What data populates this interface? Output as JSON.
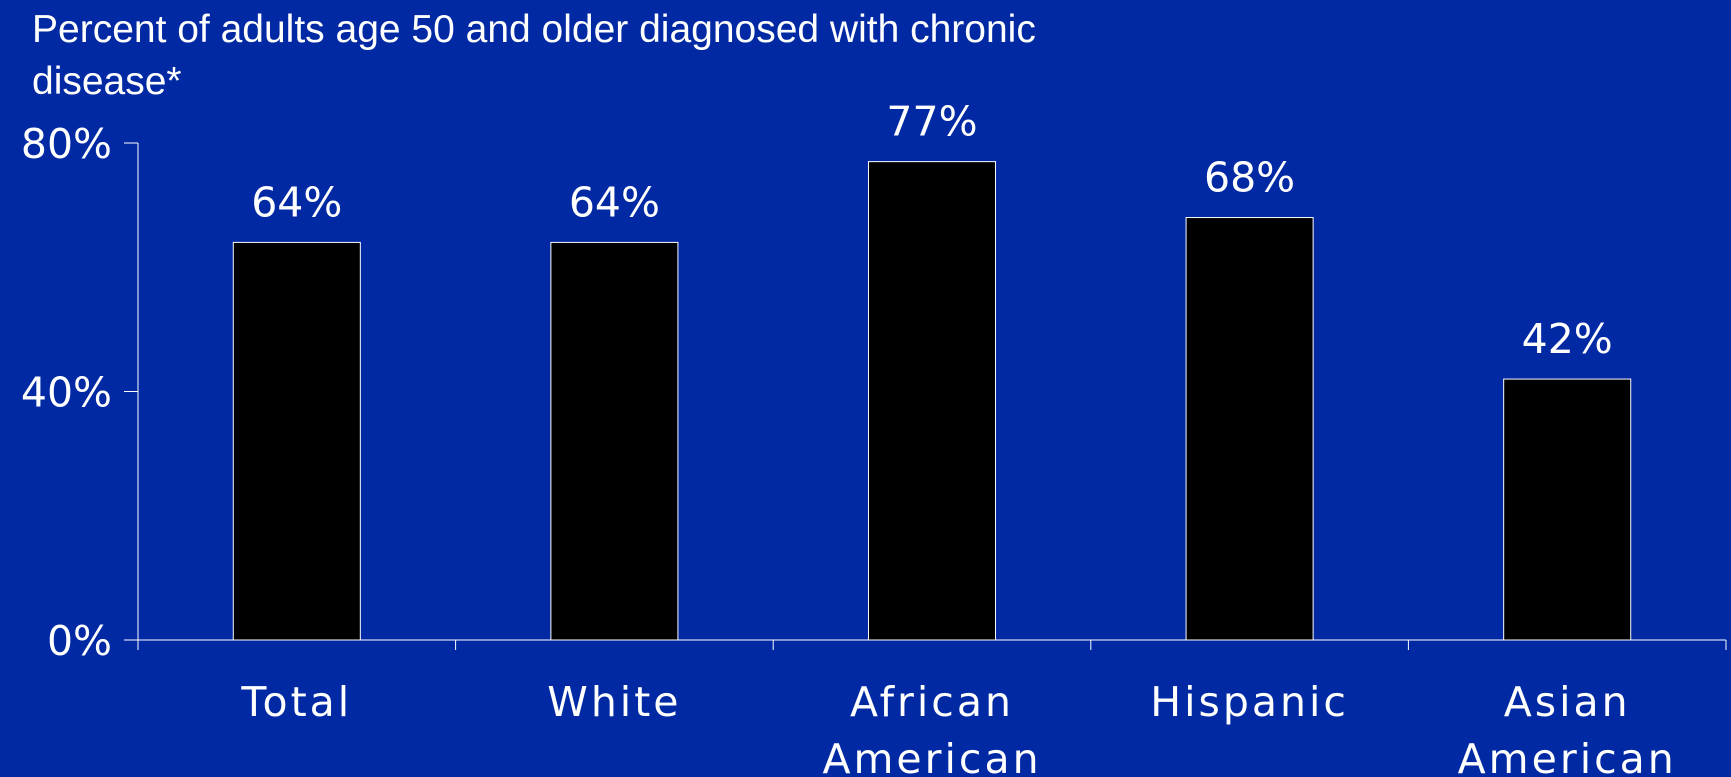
{
  "chart_data": {
    "type": "bar",
    "title": "Percent of adults age 50 and older diagnosed with chronic disease*",
    "xlabel": "",
    "ylabel": "",
    "categories": [
      "Total",
      "White",
      "African American",
      "Hispanic",
      "Asian American"
    ],
    "category_lines": [
      [
        "Total"
      ],
      [
        "White"
      ],
      [
        "African",
        "American"
      ],
      [
        "Hispanic"
      ],
      [
        "Asian",
        "American"
      ]
    ],
    "values": [
      64,
      64,
      77,
      68,
      42
    ],
    "value_labels": [
      "64%",
      "64%",
      "77%",
      "68%",
      "42%"
    ],
    "ylim": [
      0,
      80
    ],
    "yticks": [
      0,
      40,
      80
    ],
    "ytick_labels": [
      "0%",
      "40%",
      "80%"
    ],
    "grid": false,
    "legend": "none"
  },
  "colors": {
    "background": "#0029A3",
    "bar_fill": "#000000",
    "bar_outline": "#FFFFFF",
    "axis": "#FFFFFF",
    "text": "#FFFFFF"
  }
}
